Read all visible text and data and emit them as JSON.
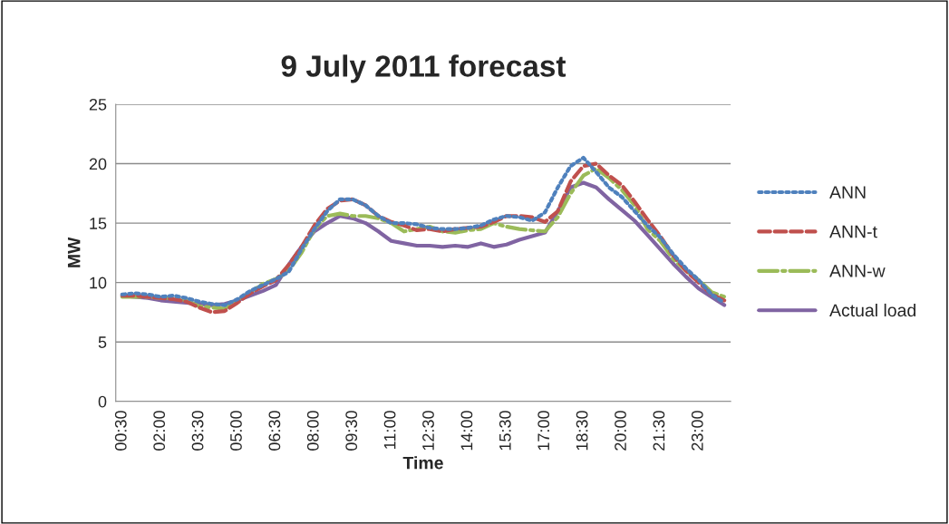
{
  "chart_data": {
    "type": "line",
    "title": "9 July 2011 forecast",
    "xlabel": "Time",
    "ylabel": "MW",
    "categories": [
      "00:30",
      null,
      null,
      "02:00",
      null,
      null,
      "03:30",
      null,
      null,
      "05:00",
      null,
      null,
      "06:30",
      null,
      null,
      "08:00",
      null,
      null,
      "09:30",
      null,
      null,
      "11:00",
      null,
      null,
      "12:30",
      null,
      null,
      "14:00",
      null,
      null,
      "15:30",
      null,
      null,
      "17:00",
      null,
      null,
      "18:30",
      null,
      null,
      "20:00",
      null,
      null,
      "21:30",
      null,
      null,
      "23:00",
      null,
      null
    ],
    "series": [
      {
        "name": "ANN",
        "color": "#4f81bd",
        "line_style": "dotted",
        "values": [
          9.0,
          9.1,
          9.0,
          8.8,
          8.9,
          8.7,
          8.4,
          8.2,
          8.1,
          8.6,
          9.3,
          9.8,
          10.3,
          10.9,
          12.8,
          14.5,
          16.0,
          17.0,
          17.0,
          16.5,
          15.6,
          15.0,
          15.0,
          14.9,
          14.6,
          14.5,
          14.5,
          14.6,
          14.8,
          15.3,
          15.6,
          15.5,
          15.2,
          15.9,
          18.0,
          19.8,
          20.5,
          19.3,
          18.0,
          17.2,
          16.0,
          14.8,
          13.8,
          12.4,
          11.2,
          10.2,
          9.0,
          8.3
        ]
      },
      {
        "name": "ANN-t",
        "color": "#c0504d",
        "line_style": "dashed",
        "values": [
          8.9,
          8.9,
          8.8,
          8.7,
          8.6,
          8.4,
          7.9,
          7.5,
          7.6,
          8.3,
          9.1,
          9.7,
          10.2,
          11.5,
          13.0,
          14.8,
          16.2,
          16.9,
          17.0,
          16.5,
          15.6,
          15.1,
          14.8,
          14.4,
          14.5,
          14.3,
          14.5,
          14.6,
          14.7,
          15.1,
          15.6,
          15.6,
          15.5,
          15.1,
          16.0,
          18.5,
          19.8,
          20.0,
          19.0,
          18.2,
          16.8,
          15.3,
          13.9,
          12.3,
          11.0,
          10.0,
          9.0,
          8.5
        ]
      },
      {
        "name": "ANN-w",
        "color": "#9bbb59",
        "line_style": "dashdot",
        "values": [
          8.8,
          8.8,
          8.8,
          8.7,
          8.7,
          8.5,
          8.0,
          7.9,
          7.8,
          8.5,
          9.2,
          9.9,
          10.3,
          11.0,
          12.5,
          14.5,
          15.6,
          15.8,
          15.6,
          15.6,
          15.4,
          15.0,
          14.3,
          14.5,
          14.7,
          14.3,
          14.2,
          14.4,
          14.5,
          15.0,
          14.7,
          14.5,
          14.4,
          14.3,
          15.5,
          17.5,
          19.0,
          19.6,
          18.8,
          17.8,
          16.5,
          14.5,
          13.5,
          12.0,
          11.0,
          10.2,
          9.2,
          8.8
        ]
      },
      {
        "name": "Actual load",
        "color": "#8064a2",
        "line_style": "solid",
        "values": [
          8.9,
          8.8,
          8.7,
          8.5,
          8.4,
          8.3,
          8.2,
          8.1,
          8.2,
          8.5,
          8.9,
          9.3,
          9.8,
          11.5,
          13.0,
          14.3,
          15.0,
          15.6,
          15.4,
          15.0,
          14.3,
          13.5,
          13.3,
          13.1,
          13.1,
          13.0,
          13.1,
          13.0,
          13.3,
          13.0,
          13.2,
          13.6,
          13.9,
          14.2,
          16.0,
          18.0,
          18.4,
          18.0,
          17.0,
          16.1,
          15.2,
          14.0,
          12.8,
          11.6,
          10.5,
          9.5,
          8.8,
          8.1
        ]
      }
    ],
    "ylim": [
      0,
      25
    ],
    "yticks": [
      0,
      5,
      10,
      15,
      20,
      25
    ],
    "grid": "y",
    "legend": "right",
    "marker": "none"
  }
}
